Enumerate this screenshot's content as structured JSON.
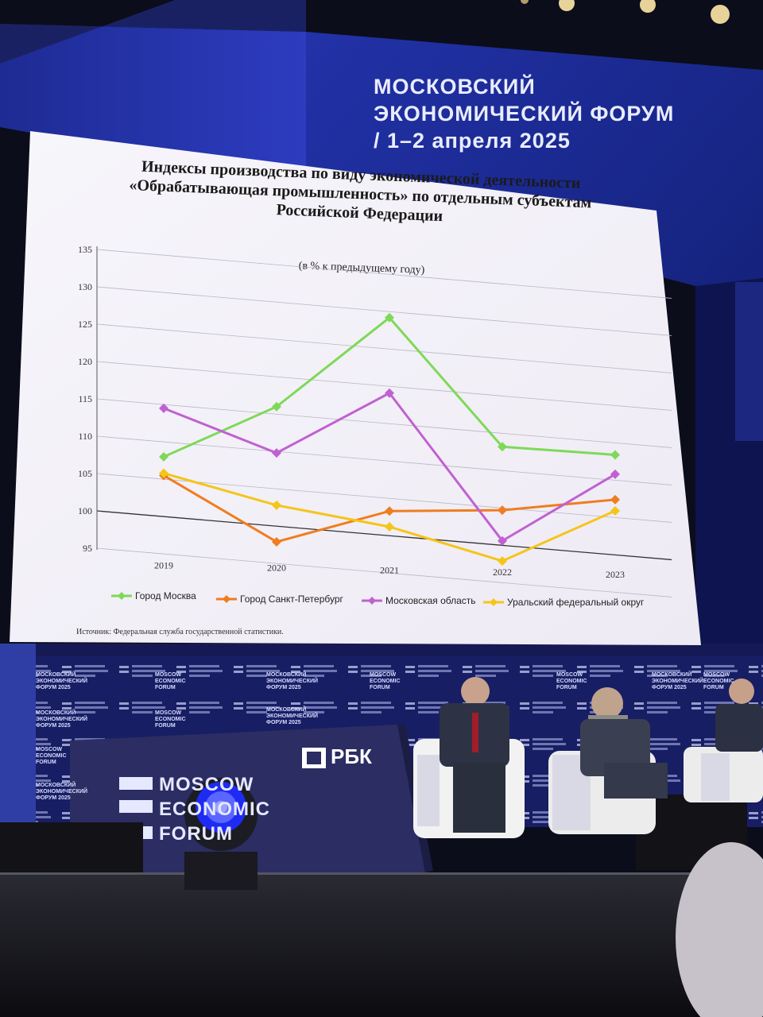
{
  "banner": {
    "line1": "МОСКОВСКИЙ",
    "line2": "ЭКОНОМИЧЕСКИЙ ФОРУМ",
    "line3": "/ 1–2 апреля 2025"
  },
  "stage_logo": {
    "line1": "MOSCOW",
    "line2": "ECONOMIC",
    "line3": "FORUM"
  },
  "sponsor_logo": "РБК",
  "backdrop_label": "МОСКОВСКИЙ\nЭКОНОМИЧЕСКИЙ\nФОРУМ 2025",
  "backdrop_label_en": "MOSCOW\nECONOMIC\nFORUM",
  "colors": {
    "moscow": "#7ed957",
    "spb": "#f07d1e",
    "mo": "#c061d1",
    "ural": "#f5c518",
    "banner": "#1a2a8c"
  },
  "chart_data": {
    "type": "line",
    "title_lines": [
      "Индексы производства по виду экономической деятельности",
      "«Обрабатывающая промышленность» по отдельным  субъектам",
      "Российской Федерации"
    ],
    "subtitle": "(в % к предыдущему году)",
    "source": "Источник: Федеральная  служба государственной статистики.",
    "x": [
      "2019",
      "2020",
      "2021",
      "2022",
      "2023"
    ],
    "ylim": [
      95,
      135
    ],
    "yticks": [
      "135",
      "130",
      "125",
      "120",
      "115",
      "110",
      "105",
      "100",
      "95"
    ],
    "grid": true,
    "legend_position": "bottom",
    "series": [
      {
        "name": "Город Москва",
        "values": [
          108.0,
          116.0,
          129.2,
          113.2,
          113.4
        ]
      },
      {
        "name": "Город Санкт-Петербург",
        "values": [
          105.5,
          97.9,
          103.3,
          104.7,
          107.4
        ]
      },
      {
        "name": "Московская область",
        "values": [
          114.5,
          109.8,
          119.1,
          100.6,
          110.8
        ]
      },
      {
        "name": "Уральский федеральный округ",
        "values": [
          105.8,
          102.8,
          101.2,
          97.9,
          105.9
        ]
      }
    ]
  }
}
